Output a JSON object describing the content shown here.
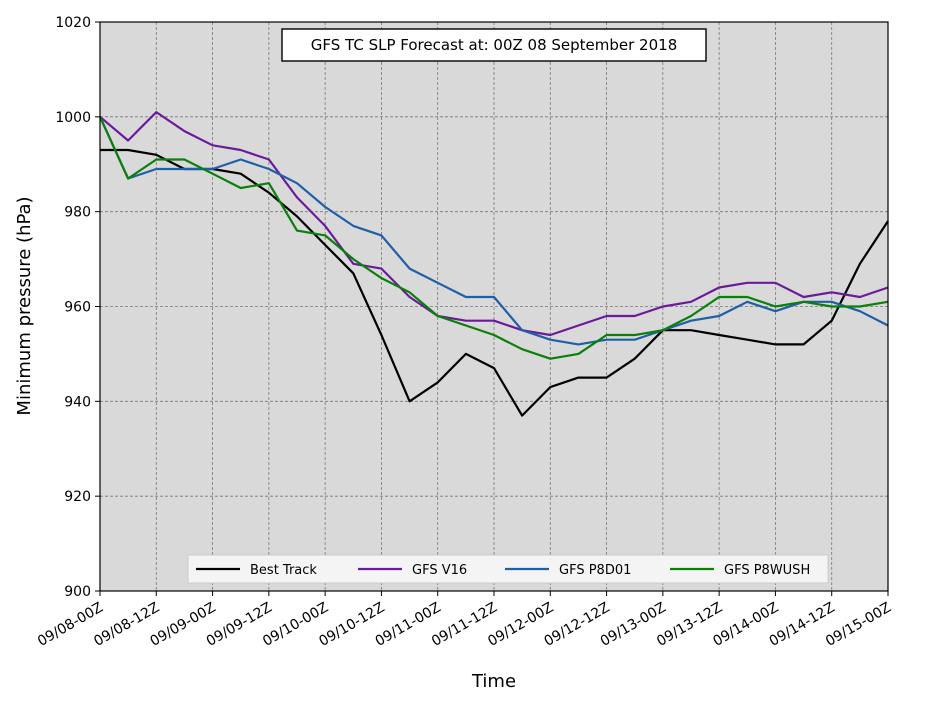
{
  "chart_data": {
    "type": "line",
    "title": "GFS TC SLP Forecast at: 00Z 08 September 2018",
    "xlabel": "Time",
    "ylabel": "Minimum pressure (hPa)",
    "ylim": [
      900,
      1020
    ],
    "yticks": [
      "900",
      "920",
      "940",
      "960",
      "980",
      "1000",
      "1020"
    ],
    "x_tick_labels": [
      "09/08-00Z",
      "09/08-12Z",
      "09/09-00Z",
      "09/09-12Z",
      "09/10-00Z",
      "09/10-12Z",
      "09/11-00Z",
      "09/11-12Z",
      "09/12-00Z",
      "09/12-12Z",
      "09/13-00Z",
      "09/13-12Z",
      "09/14-00Z",
      "09/14-12Z",
      "09/15-00Z"
    ],
    "x_hours": [
      0,
      6,
      12,
      18,
      24,
      30,
      36,
      42,
      48,
      54,
      60,
      66,
      72,
      78,
      84,
      90,
      96,
      102,
      108,
      114,
      120,
      126,
      132,
      138,
      144,
      150,
      156,
      162,
      168
    ],
    "xlim_hours": [
      0,
      168
    ],
    "grid": true,
    "legend_position": "bottom-center",
    "background": "#d9d9d9",
    "series": [
      {
        "name": "Best Track",
        "color": "#000000",
        "values": [
          993,
          993,
          992,
          989,
          989,
          988,
          984,
          979,
          973,
          967,
          954,
          940,
          944,
          950,
          947,
          937,
          943,
          945,
          945,
          949,
          955,
          955,
          954,
          953,
          952,
          952,
          957,
          969,
          978
        ]
      },
      {
        "name": "GFS V16",
        "color": "#6a1b9a",
        "values": [
          1000,
          995,
          1001,
          997,
          994,
          993,
          991,
          983,
          977,
          969,
          968,
          962,
          958,
          957,
          957,
          955,
          954,
          956,
          958,
          958,
          960,
          961,
          964,
          965,
          965,
          962,
          963,
          962,
          964
        ]
      },
      {
        "name": "GFS P8D01",
        "color": "#1f5fa6",
        "values": [
          1000,
          987,
          989,
          989,
          989,
          991,
          989,
          986,
          981,
          977,
          975,
          968,
          965,
          962,
          962,
          955,
          953,
          952,
          953,
          953,
          955,
          957,
          958,
          961,
          959,
          961,
          961,
          959,
          956
        ]
      },
      {
        "name": "GFS P8WUSH",
        "color": "#0a7f0a",
        "values": [
          1000,
          987,
          991,
          991,
          988,
          985,
          986,
          976,
          975,
          970,
          966,
          963,
          958,
          956,
          954,
          951,
          949,
          950,
          954,
          954,
          955,
          958,
          962,
          962,
          960,
          961,
          960,
          960,
          961
        ]
      }
    ]
  }
}
